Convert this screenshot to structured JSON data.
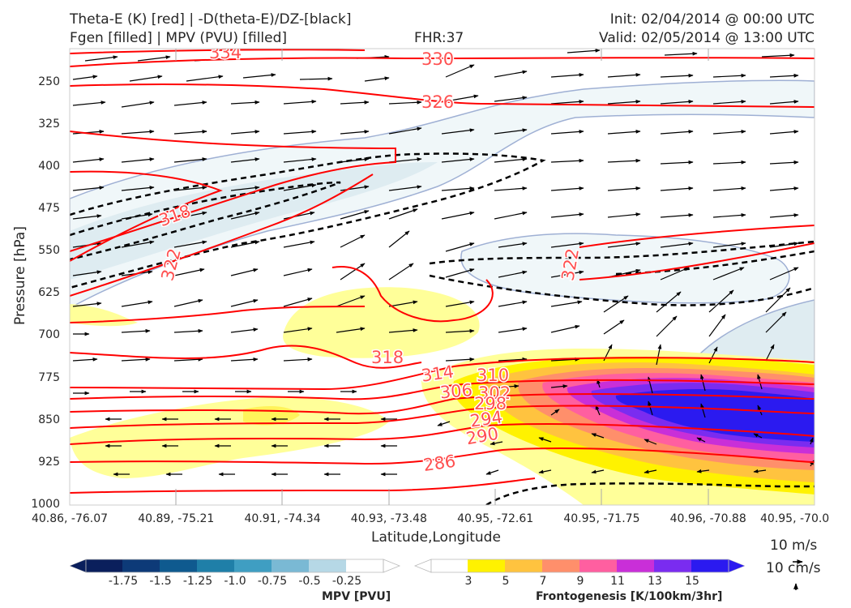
{
  "header": {
    "line1_left": "Theta-E (K) [red] | -D(theta-E)/DZ-[black]",
    "line2_left": "Fgen [filled] | MPV (PVU) [filled]",
    "fhr": "FHR:37",
    "init": "Init: 02/04/2014 @ 00:00 UTC",
    "valid": "Valid: 02/05/2014 @ 13:00 UTC"
  },
  "axes": {
    "ylabel": "Pressure [hPa]",
    "xlabel": "Latitude,Longitude"
  },
  "vector_keys": {
    "wind": "10 m/s",
    "vertical": "10 cm/s"
  },
  "colorbars": {
    "mpv": {
      "title": "MPV [PVU]",
      "ticks": [
        "-1.75",
        "-1.5",
        "-1.25",
        "-1.0",
        "-0.75",
        "-0.5",
        "-0.25"
      ],
      "colors": [
        "#0a1f5c",
        "#0d3a78",
        "#0f5a8f",
        "#1f7fa8",
        "#3f9ec2",
        "#7ab9d4",
        "#b6d8e6",
        "#ffffff"
      ]
    },
    "fgen": {
      "title": "Frontogenesis [K/100km/3hr]",
      "ticks": [
        "3",
        "5",
        "7",
        "9",
        "11",
        "13",
        "15"
      ],
      "colors": [
        "#ffffff",
        "#fff200",
        "#ffc33f",
        "#ff8f6b",
        "#ff5fa0",
        "#c92fd8",
        "#7a2cf0",
        "#2b1af0"
      ]
    }
  },
  "chart_data": {
    "type": "heatmap",
    "title": "",
    "xlabel": "Latitude,Longitude",
    "ylabel": "Pressure [hPa]",
    "x_ticks": [
      "40.86, -76.07",
      "40.89, -75.21",
      "40.91, -74.34",
      "40.93, -73.48",
      "40.95, -72.61",
      "40.95, -71.75",
      "40.96, -70.88",
      "40.95, -70.0"
    ],
    "y_ticks": [
      250,
      325,
      400,
      475,
      550,
      625,
      700,
      775,
      850,
      925,
      1000
    ],
    "ylim": [
      1000,
      190
    ],
    "y_inverted": true,
    "theta_e_labels": [
      "334",
      "330",
      "326",
      "318",
      "322",
      "322",
      "318",
      "314",
      "310",
      "306",
      "302",
      "298",
      "294",
      "290",
      "286"
    ],
    "fgen_max": 15,
    "mpv_min": -0.25,
    "colors": {
      "theta_e": "#ff0000",
      "dthetae_dz": "#000000",
      "wind_vectors": "#000000"
    }
  }
}
